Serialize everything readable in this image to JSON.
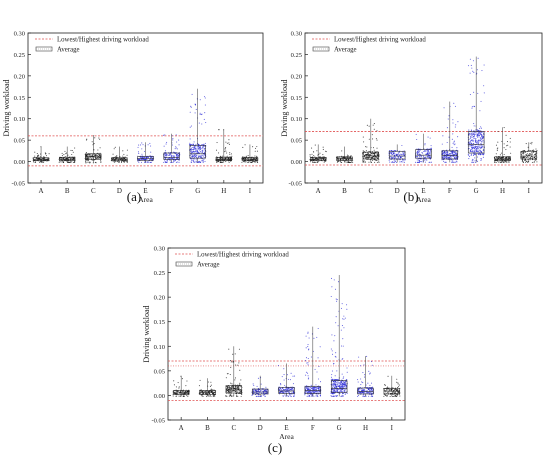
{
  "figure": {
    "panel_labels": [
      "(a)",
      "(b)",
      "(c)"
    ]
  },
  "colors": {
    "black_points": "#111111",
    "blue_points": "#2b2bd6",
    "threshold_line": "#e05050",
    "average_line": "#8a8a8a",
    "box_stroke": "#333333"
  },
  "chart_data": [
    {
      "type": "box",
      "panel": "(a)",
      "xlabel": "Area",
      "ylabel": "Driving workload",
      "ylim": [
        -0.05,
        0.3
      ],
      "yticks": [
        "-0.05",
        "0.00",
        "0.05",
        "0.10",
        "0.15",
        "0.20",
        "0.25",
        "0.30"
      ],
      "legend": [
        "Lowest/Highest driving workload",
        "Average"
      ],
      "legend_position": "top-left",
      "categories": [
        "A",
        "B",
        "C",
        "D",
        "E",
        "F",
        "G",
        "H",
        "I"
      ],
      "highlight_categories": [
        "E",
        "F",
        "G"
      ],
      "thresholds": {
        "lowest": -0.01,
        "highest": 0.06,
        "average": null
      },
      "boxes": [
        {
          "q1": 0.002,
          "median": 0.005,
          "q3": 0.009,
          "min": -0.002,
          "max": 0.035
        },
        {
          "q1": 0.002,
          "median": 0.005,
          "q3": 0.01,
          "min": -0.002,
          "max": 0.035
        },
        {
          "q1": 0.005,
          "median": 0.011,
          "q3": 0.018,
          "min": -0.003,
          "max": 0.062
        },
        {
          "q1": 0.002,
          "median": 0.005,
          "q3": 0.009,
          "min": -0.002,
          "max": 0.035
        },
        {
          "q1": 0.003,
          "median": 0.007,
          "q3": 0.012,
          "min": -0.002,
          "max": 0.045
        },
        {
          "q1": 0.005,
          "median": 0.01,
          "q3": 0.02,
          "min": -0.002,
          "max": 0.065
        },
        {
          "q1": 0.008,
          "median": 0.018,
          "q3": 0.038,
          "min": -0.002,
          "max": 0.17
        },
        {
          "q1": 0.002,
          "median": 0.005,
          "q3": 0.01,
          "min": -0.002,
          "max": 0.075
        },
        {
          "q1": 0.002,
          "median": 0.005,
          "q3": 0.01,
          "min": -0.002,
          "max": 0.04
        }
      ]
    },
    {
      "type": "box",
      "panel": "(b)",
      "xlabel": "Area",
      "ylabel": "Driving workload",
      "ylim": [
        -0.05,
        0.3
      ],
      "yticks": [
        "-0.05",
        "0.00",
        "0.05",
        "0.10",
        "0.15",
        "0.20",
        "0.25",
        "0.30"
      ],
      "legend": [
        "Lowest/Highest driving workload",
        "Average"
      ],
      "legend_position": "top-left",
      "categories": [
        "A",
        "B",
        "C",
        "D",
        "E",
        "F",
        "G",
        "H",
        "I"
      ],
      "highlight_categories": [
        "D",
        "E",
        "F",
        "G"
      ],
      "thresholds": {
        "lowest": -0.008,
        "highest": 0.07,
        "average": null
      },
      "boxes": [
        {
          "q1": 0.002,
          "median": 0.006,
          "q3": 0.01,
          "min": -0.002,
          "max": 0.04
        },
        {
          "q1": 0.003,
          "median": 0.007,
          "q3": 0.011,
          "min": -0.002,
          "max": 0.035
        },
        {
          "q1": 0.006,
          "median": 0.013,
          "q3": 0.022,
          "min": -0.002,
          "max": 0.1
        },
        {
          "q1": 0.006,
          "median": 0.013,
          "q3": 0.024,
          "min": -0.002,
          "max": 0.04
        },
        {
          "q1": 0.008,
          "median": 0.015,
          "q3": 0.028,
          "min": -0.002,
          "max": 0.065
        },
        {
          "q1": 0.006,
          "median": 0.014,
          "q3": 0.025,
          "min": -0.002,
          "max": 0.14
        },
        {
          "q1": 0.02,
          "median": 0.04,
          "q3": 0.07,
          "min": -0.002,
          "max": 0.245
        },
        {
          "q1": 0.002,
          "median": 0.006,
          "q3": 0.011,
          "min": -0.002,
          "max": 0.08
        },
        {
          "q1": 0.006,
          "median": 0.013,
          "q3": 0.024,
          "min": -0.002,
          "max": 0.045
        }
      ]
    },
    {
      "type": "box",
      "panel": "(c)",
      "xlabel": "Area",
      "ylabel": "Driving workload",
      "ylim": [
        -0.05,
        0.3
      ],
      "yticks": [
        "-0.05",
        "0.00",
        "0.05",
        "0.10",
        "0.15",
        "0.20",
        "0.25",
        "0.30"
      ],
      "legend": [
        "Lowest/Highest driving workload",
        "Average"
      ],
      "legend_position": "top-left",
      "categories": [
        "A",
        "B",
        "C",
        "D",
        "E",
        "F",
        "G",
        "H",
        "I"
      ],
      "highlight_categories": [
        "D",
        "E",
        "F",
        "G",
        "H"
      ],
      "thresholds": {
        "lowest": -0.01,
        "highest": 0.07,
        "average": 0.06
      },
      "boxes": [
        {
          "q1": 0.002,
          "median": 0.005,
          "q3": 0.01,
          "min": -0.002,
          "max": 0.04
        },
        {
          "q1": 0.002,
          "median": 0.006,
          "q3": 0.01,
          "min": -0.002,
          "max": 0.035
        },
        {
          "q1": 0.005,
          "median": 0.011,
          "q3": 0.02,
          "min": -0.002,
          "max": 0.1
        },
        {
          "q1": 0.003,
          "median": 0.007,
          "q3": 0.013,
          "min": -0.002,
          "max": 0.04
        },
        {
          "q1": 0.004,
          "median": 0.009,
          "q3": 0.016,
          "min": -0.002,
          "max": 0.065
        },
        {
          "q1": 0.004,
          "median": 0.01,
          "q3": 0.018,
          "min": -0.002,
          "max": 0.14
        },
        {
          "q1": 0.006,
          "median": 0.014,
          "q3": 0.03,
          "min": -0.002,
          "max": 0.245
        },
        {
          "q1": 0.003,
          "median": 0.008,
          "q3": 0.015,
          "min": -0.002,
          "max": 0.08
        },
        {
          "q1": 0.003,
          "median": 0.008,
          "q3": 0.014,
          "min": -0.002,
          "max": 0.04
        }
      ]
    }
  ]
}
